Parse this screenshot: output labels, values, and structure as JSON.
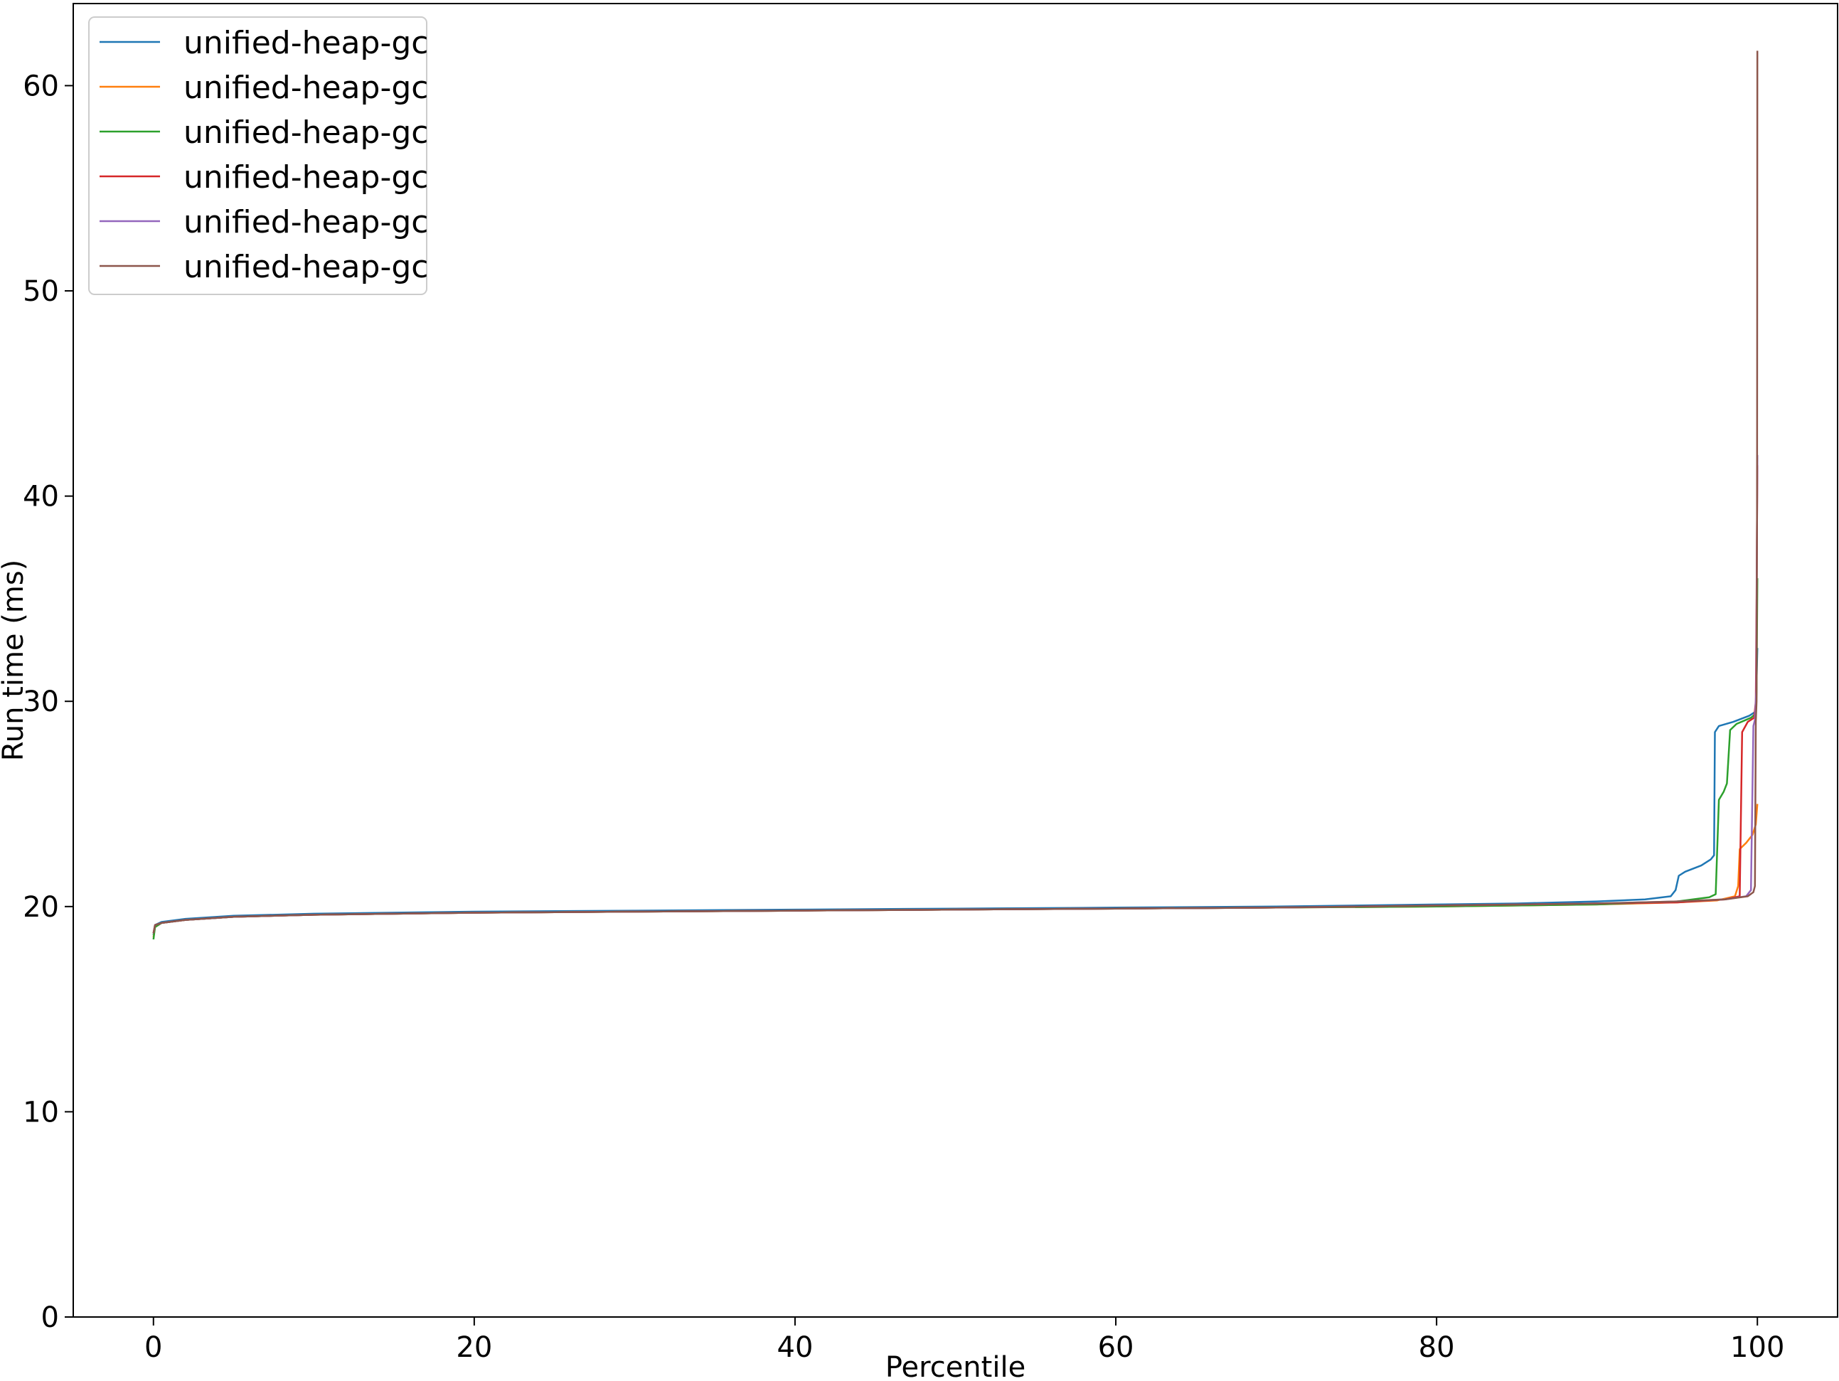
{
  "chart_data": {
    "type": "line",
    "title": "",
    "xlabel": "Percentile",
    "ylabel": "Run time (ms)",
    "xlim": [
      -5,
      105
    ],
    "ylim": [
      0,
      64
    ],
    "xticks": [
      0,
      20,
      40,
      60,
      80,
      100
    ],
    "yticks": [
      0,
      10,
      20,
      30,
      40,
      50,
      60
    ],
    "grid": false,
    "legend_position": "top-left",
    "series": [
      {
        "name": "unified-heap-gc",
        "color": "#1f77b4",
        "points": [
          [
            0,
            18.6
          ],
          [
            0.1,
            19.1
          ],
          [
            0.5,
            19.25
          ],
          [
            2,
            19.4
          ],
          [
            5,
            19.55
          ],
          [
            10,
            19.65
          ],
          [
            20,
            19.75
          ],
          [
            30,
            19.8
          ],
          [
            40,
            19.85
          ],
          [
            50,
            19.9
          ],
          [
            60,
            19.95
          ],
          [
            70,
            20.0
          ],
          [
            80,
            20.1
          ],
          [
            85,
            20.15
          ],
          [
            90,
            20.25
          ],
          [
            93,
            20.35
          ],
          [
            94.6,
            20.5
          ],
          [
            94.9,
            20.8
          ],
          [
            95.1,
            21.5
          ],
          [
            95.5,
            21.7
          ],
          [
            96.5,
            22.0
          ],
          [
            97.1,
            22.3
          ],
          [
            97.3,
            22.5
          ],
          [
            97.35,
            28.5
          ],
          [
            97.6,
            28.8
          ],
          [
            98.5,
            29.0
          ],
          [
            99.5,
            29.3
          ],
          [
            99.9,
            29.5
          ],
          [
            99.95,
            31.0
          ],
          [
            100,
            32.6
          ]
        ]
      },
      {
        "name": "unified-heap-gc",
        "color": "#ff7f0e",
        "points": [
          [
            0,
            18.5
          ],
          [
            0.1,
            19.0
          ],
          [
            0.5,
            19.2
          ],
          [
            2,
            19.35
          ],
          [
            5,
            19.5
          ],
          [
            10,
            19.6
          ],
          [
            20,
            19.7
          ],
          [
            30,
            19.75
          ],
          [
            40,
            19.8
          ],
          [
            50,
            19.85
          ],
          [
            60,
            19.9
          ],
          [
            70,
            19.95
          ],
          [
            80,
            20.0
          ],
          [
            90,
            20.1
          ],
          [
            95,
            20.2
          ],
          [
            97.5,
            20.3
          ],
          [
            98.6,
            20.5
          ],
          [
            98.8,
            21.0
          ],
          [
            98.9,
            22.8
          ],
          [
            99.3,
            23.1
          ],
          [
            99.7,
            23.5
          ],
          [
            99.9,
            24.0
          ],
          [
            100,
            25.0
          ]
        ]
      },
      {
        "name": "unified-heap-gc",
        "color": "#2ca02c",
        "points": [
          [
            0,
            18.4
          ],
          [
            0.1,
            19.0
          ],
          [
            0.5,
            19.2
          ],
          [
            2,
            19.35
          ],
          [
            5,
            19.5
          ],
          [
            10,
            19.6
          ],
          [
            20,
            19.7
          ],
          [
            30,
            19.75
          ],
          [
            40,
            19.8
          ],
          [
            50,
            19.85
          ],
          [
            60,
            19.9
          ],
          [
            70,
            19.95
          ],
          [
            80,
            20.0
          ],
          [
            90,
            20.1
          ],
          [
            95,
            20.25
          ],
          [
            97,
            20.45
          ],
          [
            97.4,
            20.6
          ],
          [
            97.6,
            25.2
          ],
          [
            97.9,
            25.6
          ],
          [
            98.1,
            26.0
          ],
          [
            98.3,
            28.6
          ],
          [
            98.7,
            28.9
          ],
          [
            99.6,
            29.2
          ],
          [
            99.9,
            29.4
          ],
          [
            99.95,
            30.5
          ],
          [
            100,
            36.0
          ]
        ]
      },
      {
        "name": "unified-heap-gc",
        "color": "#d62728",
        "points": [
          [
            0,
            18.7
          ],
          [
            0.1,
            19.1
          ],
          [
            0.5,
            19.2
          ],
          [
            2,
            19.35
          ],
          [
            5,
            19.5
          ],
          [
            10,
            19.6
          ],
          [
            20,
            19.7
          ],
          [
            30,
            19.75
          ],
          [
            40,
            19.8
          ],
          [
            50,
            19.85
          ],
          [
            60,
            19.9
          ],
          [
            70,
            19.95
          ],
          [
            80,
            20.05
          ],
          [
            90,
            20.15
          ],
          [
            95,
            20.2
          ],
          [
            98,
            20.35
          ],
          [
            98.9,
            20.5
          ],
          [
            99.05,
            28.5
          ],
          [
            99.4,
            29.0
          ],
          [
            99.8,
            29.2
          ],
          [
            99.9,
            30.0
          ],
          [
            99.95,
            35.0
          ],
          [
            100,
            41.5
          ]
        ]
      },
      {
        "name": "unified-heap-gc",
        "color": "#9467bd",
        "points": [
          [
            0,
            18.7
          ],
          [
            0.1,
            19.1
          ],
          [
            0.5,
            19.2
          ],
          [
            2,
            19.35
          ],
          [
            5,
            19.5
          ],
          [
            10,
            19.6
          ],
          [
            20,
            19.7
          ],
          [
            30,
            19.75
          ],
          [
            40,
            19.8
          ],
          [
            50,
            19.85
          ],
          [
            60,
            19.9
          ],
          [
            70,
            19.95
          ],
          [
            80,
            20.05
          ],
          [
            90,
            20.15
          ],
          [
            95,
            20.25
          ],
          [
            98,
            20.35
          ],
          [
            99.3,
            20.5
          ],
          [
            99.6,
            20.8
          ],
          [
            99.75,
            28.8
          ],
          [
            99.85,
            29.1
          ],
          [
            99.93,
            30.5
          ],
          [
            100,
            42.0
          ]
        ]
      },
      {
        "name": "unified-heap-gc",
        "color": "#8c564b",
        "points": [
          [
            0,
            18.7
          ],
          [
            0.1,
            19.1
          ],
          [
            0.5,
            19.2
          ],
          [
            2,
            19.35
          ],
          [
            5,
            19.5
          ],
          [
            10,
            19.6
          ],
          [
            20,
            19.7
          ],
          [
            30,
            19.75
          ],
          [
            40,
            19.8
          ],
          [
            50,
            19.85
          ],
          [
            60,
            19.9
          ],
          [
            70,
            19.95
          ],
          [
            80,
            20.05
          ],
          [
            90,
            20.15
          ],
          [
            95,
            20.25
          ],
          [
            98,
            20.35
          ],
          [
            99.4,
            20.5
          ],
          [
            99.75,
            20.7
          ],
          [
            99.85,
            21.0
          ],
          [
            99.9,
            29.0
          ],
          [
            99.95,
            30.0
          ],
          [
            99.98,
            40.0
          ],
          [
            100,
            61.7
          ]
        ]
      }
    ]
  }
}
